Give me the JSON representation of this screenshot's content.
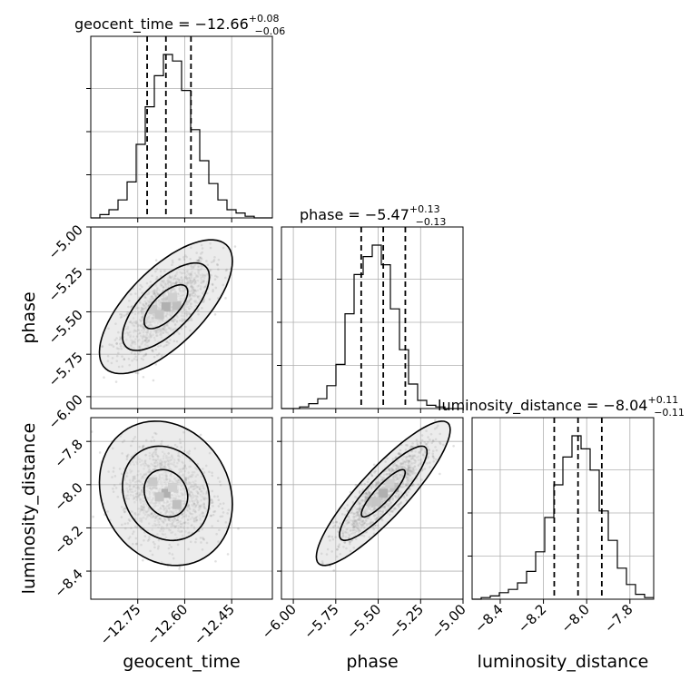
{
  "chart_data": {
    "type": "corner",
    "grid": true,
    "parameters": [
      "geocent_time",
      "phase",
      "luminosity_distance"
    ],
    "axis_labels": {
      "geocent_time": "geocent_time",
      "phase": "phase",
      "luminosity_distance": "luminosity_distance"
    },
    "titles": [
      {
        "name": "geocent_time",
        "prefix": "geocent_time = −12.66",
        "plus": "+0.08",
        "minus": "−0.06"
      },
      {
        "name": "phase",
        "prefix": "phase = −5.47",
        "plus": "+0.13",
        "minus": "−0.13"
      },
      {
        "name": "luminosity_distance",
        "prefix": "luminosity_distance = −8.04",
        "plus": "+0.11",
        "minus": "−0.11"
      }
    ],
    "ranges": {
      "geocent_time": [
        -12.9,
        -12.32
      ],
      "phase": [
        -6.07,
        -5.0
      ],
      "luminosity_distance": [
        -8.53,
        -7.69
      ]
    },
    "ticks": {
      "geocent_time": {
        "values": [
          -12.75,
          -12.6,
          -12.45
        ],
        "labels": [
          "−12.75",
          "−12.60",
          "−12.45"
        ]
      },
      "phase": {
        "values": [
          -6.0,
          -5.75,
          -5.5,
          -5.25,
          -5.0
        ],
        "labels": [
          "−6.00",
          "−5.75",
          "−5.50",
          "−5.25",
          "−5.00"
        ]
      },
      "luminosity_distance": {
        "values": [
          -8.4,
          -8.2,
          -8.0,
          -7.8
        ],
        "labels": [
          "−8.4",
          "−8.2",
          "−8.0",
          "−7.8"
        ]
      }
    },
    "histograms": {
      "geocent_time": {
        "edges": [
          -12.9,
          -12.871,
          -12.842,
          -12.813,
          -12.784,
          -12.755,
          -12.726,
          -12.697,
          -12.668,
          -12.639,
          -12.61,
          -12.581,
          -12.552,
          -12.523,
          -12.494,
          -12.465,
          -12.436,
          -12.407,
          -12.378,
          -12.349,
          -12.32
        ],
        "counts": [
          0,
          0.02,
          0.05,
          0.11,
          0.22,
          0.45,
          0.68,
          0.87,
          1.0,
          0.96,
          0.78,
          0.54,
          0.35,
          0.21,
          0.11,
          0.05,
          0.03,
          0.01,
          0,
          0
        ],
        "quantiles": [
          -12.72,
          -12.66,
          -12.58
        ]
      },
      "phase": {
        "edges": [
          -6.07,
          -6.0165,
          -5.963,
          -5.9095,
          -5.856,
          -5.8025,
          -5.749,
          -5.6955,
          -5.642,
          -5.5885,
          -5.535,
          -5.4815,
          -5.428,
          -5.3745,
          -5.321,
          -5.2675,
          -5.214,
          -5.1605,
          -5.107,
          -5.0535,
          -5.0
        ],
        "counts": [
          0,
          0,
          0.01,
          0.03,
          0.06,
          0.14,
          0.27,
          0.58,
          0.82,
          0.93,
          1.0,
          0.88,
          0.61,
          0.36,
          0.15,
          0.05,
          0.02,
          0.01,
          0,
          0
        ],
        "quantiles": [
          -5.6,
          -5.47,
          -5.34
        ]
      },
      "luminosity_distance": {
        "edges": [
          -8.53,
          -8.488,
          -8.446,
          -8.404,
          -8.362,
          -8.32,
          -8.278,
          -8.236,
          -8.194,
          -8.152,
          -8.11,
          -8.068,
          -8.026,
          -7.984,
          -7.942,
          -7.9,
          -7.858,
          -7.816,
          -7.774,
          -7.732,
          -7.69
        ],
        "counts": [
          0,
          0.01,
          0.02,
          0.04,
          0.06,
          0.1,
          0.17,
          0.29,
          0.5,
          0.7,
          0.87,
          1.0,
          0.92,
          0.79,
          0.54,
          0.36,
          0.19,
          0.09,
          0.03,
          0.01
        ],
        "quantiles": [
          -8.15,
          -8.04,
          -7.93
        ]
      }
    },
    "pairs": [
      {
        "x": "geocent_time",
        "y": "phase",
        "mean": [
          -12.66,
          -5.47
        ],
        "std": [
          0.07,
          0.13
        ],
        "rho": 0.68
      },
      {
        "x": "geocent_time",
        "y": "luminosity_distance",
        "mean": [
          -12.66,
          -8.04
        ],
        "std": [
          0.07,
          0.11
        ],
        "rho": -0.15
      },
      {
        "x": "phase",
        "y": "luminosity_distance",
        "mean": [
          -5.47,
          -8.04
        ],
        "std": [
          0.13,
          0.11
        ],
        "rho": 0.88
      }
    ],
    "contour_levels": [
      0.39,
      0.86,
      0.99
    ]
  }
}
